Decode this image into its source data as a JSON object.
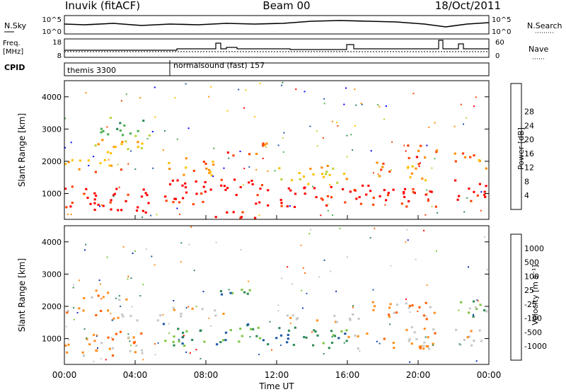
{
  "header": {
    "station": "Inuvik (fitACF)",
    "beam": "Beam 00",
    "date": "18/Oct/2011"
  },
  "top_strip": {
    "left_label": "N.Sky",
    "left_ticks": [
      "10^5",
      "10^0"
    ],
    "right_ticks": [
      "10^5",
      "10^0"
    ],
    "right_label": "N.Search"
  },
  "freq_strip": {
    "left_label_1": "Freq.",
    "left_label_2": "[MHz]",
    "left_ticks": [
      "18",
      "8"
    ],
    "right_ticks": [
      "60",
      "0"
    ],
    "right_label": "Nave"
  },
  "cpid_strip": {
    "label": "CPID",
    "modes": [
      {
        "name": "themis 3300",
        "start_hour": 0.0
      },
      {
        "name": "normalsound (fast) 157",
        "start_hour": 5.9
      }
    ]
  },
  "time_axis": {
    "label": "Time UT",
    "ticks": [
      "00:00",
      "04:00",
      "08:00",
      "12:00",
      "16:00",
      "20:00",
      "00:00"
    ]
  },
  "colors": {
    "power_scale": [
      "#0000ff",
      "#1e5aa8",
      "#2e8b57",
      "#4caf50",
      "#bfd33a",
      "#ffc000",
      "#ff8c00",
      "#ff4000",
      "#ff0000"
    ],
    "velocity_scale": [
      "#ff0000",
      "#ff6000",
      "#ff9020",
      "#c8c8c8",
      "#c8c8c8",
      "#7cc442",
      "#2e8b57",
      "#1e5aa8",
      "#1030b0"
    ]
  },
  "chart_data": [
    {
      "type": "heatmap",
      "quantity": "power",
      "ylabel": "Slant Range [km]",
      "yticks": [
        1000,
        2000,
        3000,
        4000
      ],
      "ylim": [
        200,
        4500
      ],
      "xlim_hours": [
        0,
        24
      ],
      "colorbar_label": "Power [dB]",
      "colorbar_ticks": [
        "4",
        "8",
        "12",
        "16",
        "20",
        "24",
        "28"
      ],
      "bands": [
        {
          "t0": 0.0,
          "t1": 5.0,
          "r0": 400,
          "r1": 1250,
          "level": 8
        },
        {
          "t0": 0.0,
          "t1": 3.5,
          "r0": 1700,
          "r1": 2100,
          "level": 6
        },
        {
          "t0": 1.0,
          "t1": 4.5,
          "r0": 2200,
          "r1": 2700,
          "level": 5
        },
        {
          "t0": 5.5,
          "t1": 11.0,
          "r0": 700,
          "r1": 1500,
          "level": 8
        },
        {
          "t0": 5.5,
          "t1": 8.5,
          "r0": 1600,
          "r1": 2200,
          "level": 6
        },
        {
          "t0": 7.5,
          "t1": 11.5,
          "r0": 250,
          "r1": 500,
          "level": 8
        },
        {
          "t0": 9.0,
          "t1": 11.5,
          "r0": 2200,
          "r1": 2600,
          "level": 7
        },
        {
          "t0": 11.0,
          "t1": 21.0,
          "r0": 600,
          "r1": 1300,
          "level": 8
        },
        {
          "t0": 12.0,
          "t1": 16.0,
          "r0": 1300,
          "r1": 1900,
          "level": 5
        },
        {
          "t0": 17.5,
          "t1": 20.5,
          "r0": 1400,
          "r1": 2000,
          "level": 6
        },
        {
          "t0": 19.0,
          "t1": 21.0,
          "r0": 2100,
          "r1": 2600,
          "level": 7
        },
        {
          "t0": 22.0,
          "t1": 24.0,
          "r0": 800,
          "r1": 1500,
          "level": 8
        },
        {
          "t0": 22.0,
          "t1": 24.0,
          "r0": 1700,
          "r1": 2300,
          "level": 6
        },
        {
          "t0": 2.0,
          "t1": 5.0,
          "r0": 2800,
          "r1": 3400,
          "level": 3
        }
      ]
    },
    {
      "type": "heatmap",
      "quantity": "velocity",
      "ylabel": "Slant Range [km]",
      "yticks": [
        1000,
        2000,
        3000,
        4000
      ],
      "ylim": [
        200,
        4500
      ],
      "xlim_hours": [
        0,
        24
      ],
      "colorbar_label": "Velocity [m s⁻¹]",
      "colorbar_ticks": [
        "-1000",
        "-500",
        "-100",
        "-25",
        "25",
        "100",
        "500",
        "1000"
      ],
      "bands": [
        {
          "t0": 0.0,
          "t1": 4.5,
          "r0": 500,
          "r1": 1300,
          "level": 2
        },
        {
          "t0": 0.0,
          "t1": 3.0,
          "r0": 1600,
          "r1": 2000,
          "level": 2
        },
        {
          "t0": 1.0,
          "t1": 3.5,
          "r0": 2200,
          "r1": 2600,
          "level": 2
        },
        {
          "t0": 3.0,
          "t1": 5.5,
          "r0": 1500,
          "r1": 1800,
          "level": 3
        },
        {
          "t0": 5.5,
          "t1": 11.0,
          "r0": 800,
          "r1": 1500,
          "level": 6
        },
        {
          "t0": 5.5,
          "t1": 9.0,
          "r0": 1700,
          "r1": 2000,
          "level": 3
        },
        {
          "t0": 8.0,
          "t1": 11.0,
          "r0": 2400,
          "r1": 2700,
          "level": 6
        },
        {
          "t0": 11.0,
          "t1": 16.0,
          "r0": 700,
          "r1": 1400,
          "level": 6
        },
        {
          "t0": 12.0,
          "t1": 17.0,
          "r0": 1500,
          "r1": 1800,
          "level": 3
        },
        {
          "t0": 16.0,
          "t1": 21.0,
          "r0": 700,
          "r1": 1400,
          "level": 2
        },
        {
          "t0": 17.0,
          "t1": 21.0,
          "r0": 1600,
          "r1": 2200,
          "level": 2
        },
        {
          "t0": 22.0,
          "t1": 24.0,
          "r0": 800,
          "r1": 1400,
          "level": 3
        },
        {
          "t0": 22.0,
          "t1": 24.0,
          "r0": 1600,
          "r1": 2200,
          "level": 5
        }
      ]
    }
  ]
}
